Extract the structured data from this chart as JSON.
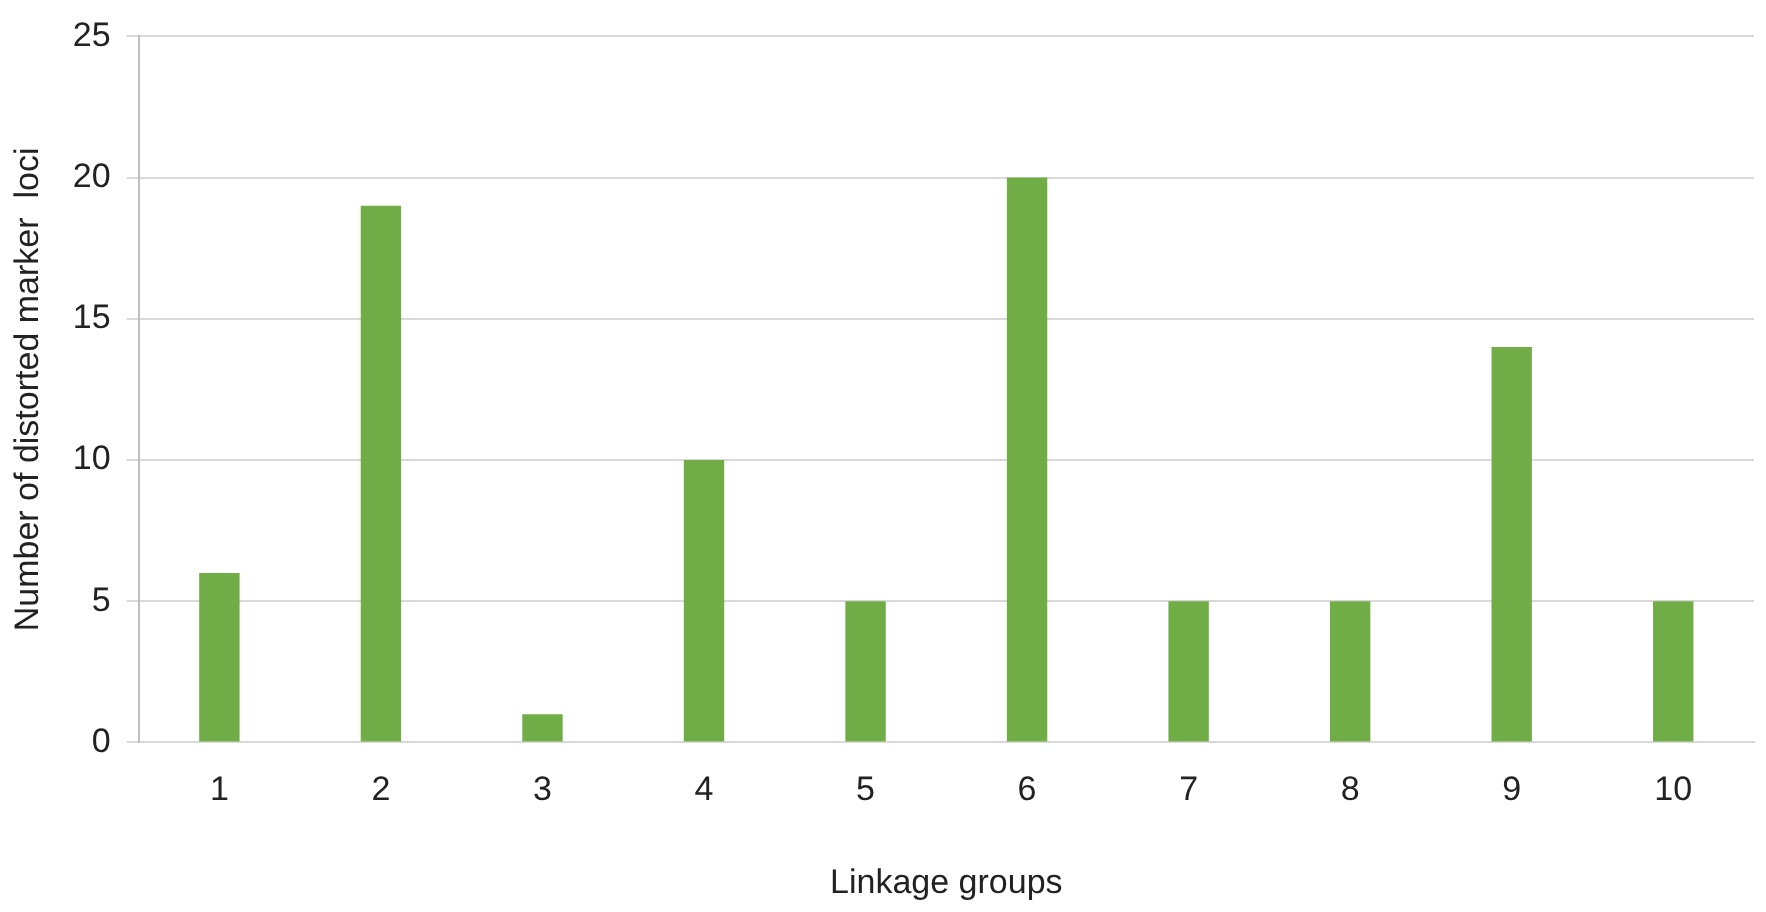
{
  "chart_data": {
    "type": "bar",
    "xlabel": "Linkage groups",
    "ylabel": "Number of distorted marker  loci",
    "categories": [
      "1",
      "2",
      "3",
      "4",
      "5",
      "6",
      "7",
      "8",
      "9",
      "10"
    ],
    "values": [
      6,
      19,
      1,
      10,
      5,
      20,
      5,
      5,
      14,
      5
    ],
    "color": "#70ad47",
    "ylim": [
      0,
      25
    ],
    "yticks": [
      0,
      5,
      10,
      15,
      20,
      25
    ],
    "grid": "y",
    "legend": false
  }
}
